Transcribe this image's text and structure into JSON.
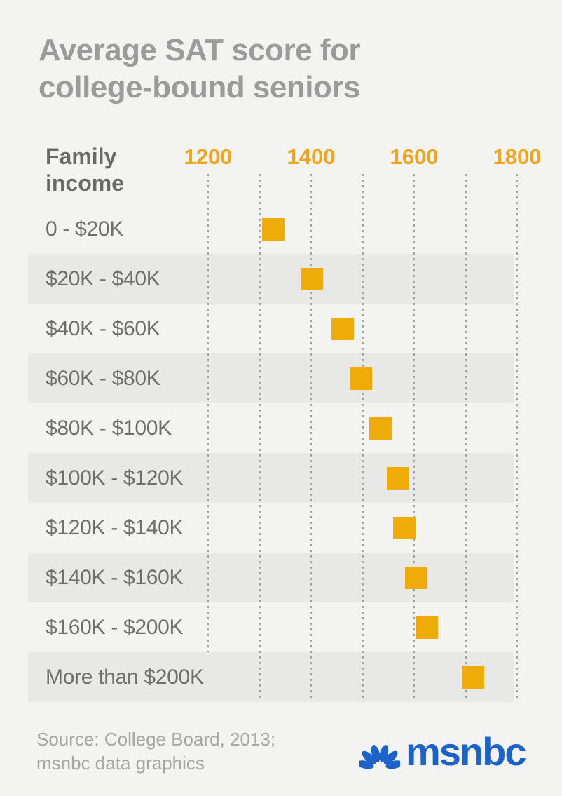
{
  "title": "Average SAT score for college-bound seniors",
  "chart_data": {
    "type": "scatter",
    "subtype": "horizontal-dot-plot",
    "y_axis_header": "Family income",
    "categories": [
      "0 - $20K",
      "$20K - $40K",
      "$40K - $60K",
      "$60K - $80K",
      "$80K - $100K",
      "$100K - $120K",
      "$120K - $140K",
      "$140K - $160K",
      "$160K - $200K",
      "More than $200K"
    ],
    "values": [
      1326,
      1402,
      1461,
      1497,
      1535,
      1569,
      1581,
      1604,
      1625,
      1714
    ],
    "x_axis": {
      "ticks": [
        1200,
        1400,
        1600,
        1800
      ],
      "gridlines": [
        1200,
        1300,
        1400,
        1500,
        1600,
        1700,
        1800
      ],
      "range": [
        1200,
        1800
      ],
      "gridline_style": "dotted"
    },
    "marker": {
      "shape": "square",
      "color": "#efab07"
    },
    "row_banding": "alternate rows shaded",
    "legend": "none"
  },
  "footer": {
    "source_line1": "Source: College Board, 2013;",
    "source_line2": "msnbc data graphics",
    "logo_text": "msnbc"
  },
  "colors": {
    "background": "#f3f3f2",
    "band_shade": "#e8e8e7",
    "title_gray": "#9b9b9b",
    "label_gray": "#6e6e6e",
    "tick_orange": "#f2a51c",
    "marker_orange": "#efab07",
    "gridline_gray": "#a3a3a3",
    "source_gray": "#a5a5a5",
    "msnbc_blue": "#1c63c9"
  }
}
